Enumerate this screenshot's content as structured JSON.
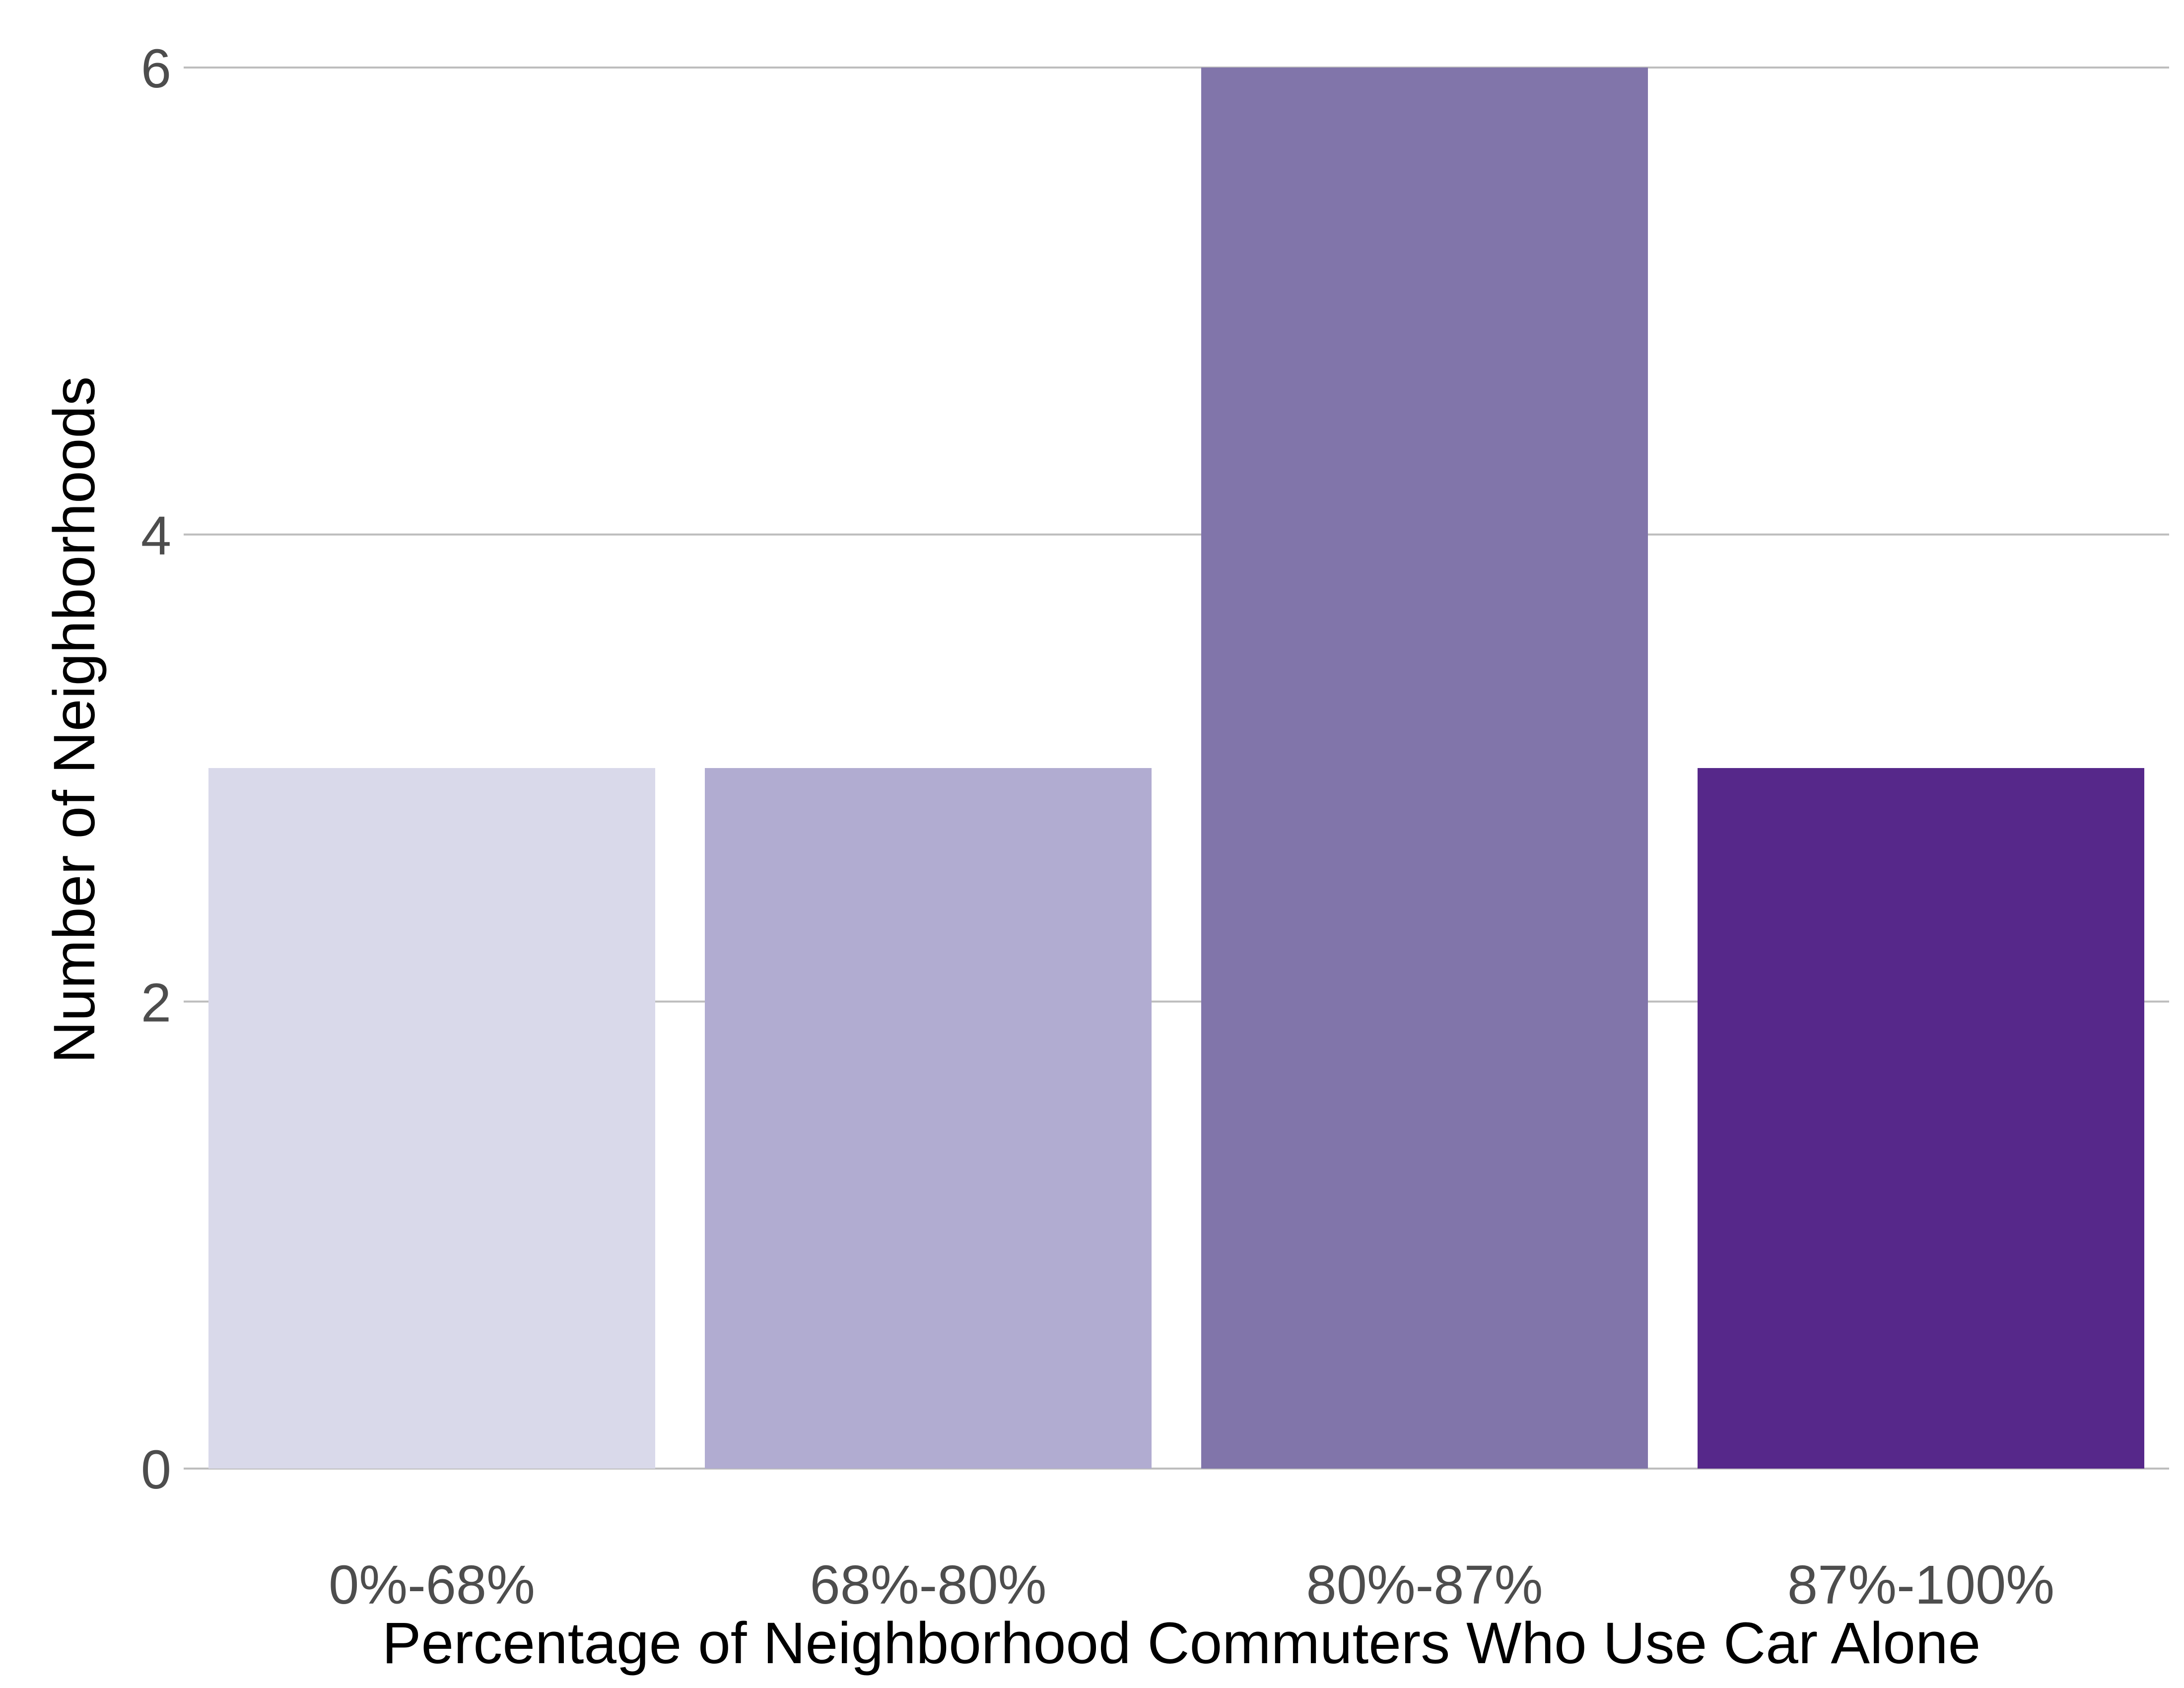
{
  "chart_data": {
    "type": "bar",
    "categories": [
      "0%-68%",
      "68%-80%",
      "80%-87%",
      "87%-100%"
    ],
    "values": [
      3,
      3,
      6,
      3
    ],
    "colors": [
      "#d9d9ea",
      "#b1acd1",
      "#8175aa",
      "#56288a"
    ],
    "title": "",
    "xlabel": "Percentage of Neighborhood Commuters Who Use Car Alone",
    "ylabel": "Number of Neighborhoods",
    "ylim": [
      0,
      6
    ],
    "yticks": [
      "0",
      "2",
      "4",
      "6"
    ],
    "grid": "horizontal",
    "legend": "none"
  }
}
